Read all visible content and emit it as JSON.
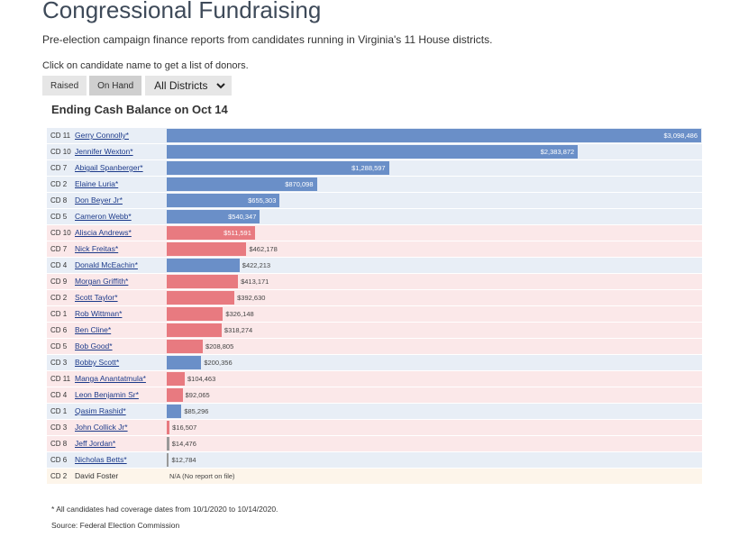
{
  "header": {
    "title": "Congressional Fundraising",
    "subtitle": "Pre-election campaign finance reports from candidates running in Virginia's 11 House districts.",
    "instruction": "Click on candidate name to get a list of donors."
  },
  "controls": {
    "raised_label": "Raised",
    "on_hand_label": "On Hand",
    "active": "On Hand",
    "district_selected": "All Districts"
  },
  "colors": {
    "democrat_bar": "#6a8fc8",
    "republican_bar": "#e87a80",
    "democrat_row": "#e8eef6",
    "republican_row": "#fbe8e9",
    "no_report_row": "#fdf5ea"
  },
  "chart_data": {
    "type": "bar",
    "orientation": "horizontal",
    "title": "Ending Cash Balance on Oct 14",
    "unit": "USD",
    "xlim": [
      0,
      3098486
    ],
    "rows": [
      {
        "district": "CD 11",
        "name": "Gerry Connolly*",
        "party": "D",
        "value": 3098486,
        "label": "$3,098,486"
      },
      {
        "district": "CD 10",
        "name": "Jennifer Wexton*",
        "party": "D",
        "value": 2383872,
        "label": "$2,383,872"
      },
      {
        "district": "CD 7",
        "name": "Abigail Spanberger*",
        "party": "D",
        "value": 1288597,
        "label": "$1,288,597"
      },
      {
        "district": "CD 2",
        "name": "Elaine Luria*",
        "party": "D",
        "value": 870098,
        "label": "$870,098"
      },
      {
        "district": "CD 8",
        "name": "Don Beyer Jr*",
        "party": "D",
        "value": 655303,
        "label": "$655,303"
      },
      {
        "district": "CD 5",
        "name": "Cameron Webb*",
        "party": "D",
        "value": 540347,
        "label": "$540,347"
      },
      {
        "district": "CD 10",
        "name": "Aliscia Andrews*",
        "party": "R",
        "value": 511591,
        "label": "$511,591"
      },
      {
        "district": "CD 7",
        "name": "Nick Freitas*",
        "party": "R",
        "value": 462178,
        "label": "$462,178"
      },
      {
        "district": "CD 4",
        "name": "Donald McEachin*",
        "party": "D",
        "value": 422213,
        "label": "$422,213"
      },
      {
        "district": "CD 9",
        "name": "Morgan Griffith*",
        "party": "R",
        "value": 413171,
        "label": "$413,171"
      },
      {
        "district": "CD 2",
        "name": "Scott Taylor*",
        "party": "R",
        "value": 392630,
        "label": "$392,630"
      },
      {
        "district": "CD 1",
        "name": "Rob Wittman*",
        "party": "R",
        "value": 326148,
        "label": "$326,148"
      },
      {
        "district": "CD 6",
        "name": "Ben Cline*",
        "party": "R",
        "value": 318274,
        "label": "$318,274"
      },
      {
        "district": "CD 5",
        "name": "Bob Good*",
        "party": "R",
        "value": 208805,
        "label": "$208,805"
      },
      {
        "district": "CD 3",
        "name": "Bobby Scott*",
        "party": "D",
        "value": 200356,
        "label": "$200,356"
      },
      {
        "district": "CD 11",
        "name": "Manga Anantatmula*",
        "party": "R",
        "value": 104463,
        "label": "$104,463"
      },
      {
        "district": "CD 4",
        "name": "Leon Benjamin Sr*",
        "party": "R",
        "value": 92065,
        "label": "$92,065"
      },
      {
        "district": "CD 1",
        "name": "Qasim Rashid*",
        "party": "D",
        "value": 85296,
        "label": "$85,296"
      },
      {
        "district": "CD 3",
        "name": "John Collick Jr*",
        "party": "R",
        "value": 16507,
        "label": "$16,507"
      },
      {
        "district": "CD 8",
        "name": "Jeff Jordan*",
        "party": "R",
        "value": 14476,
        "label": "$14,476"
      },
      {
        "district": "CD 6",
        "name": "Nicholas Betts*",
        "party": "D",
        "value": 12784,
        "label": "$12,784"
      },
      {
        "district": "CD 2",
        "name": "David Foster",
        "party": "I",
        "value": null,
        "label": "N/A (No report on file)"
      }
    ]
  },
  "footer": {
    "footnote": "* All candidates had coverage dates from 10/1/2020 to 10/14/2020.",
    "source": "Source: Federal Election Commission"
  }
}
